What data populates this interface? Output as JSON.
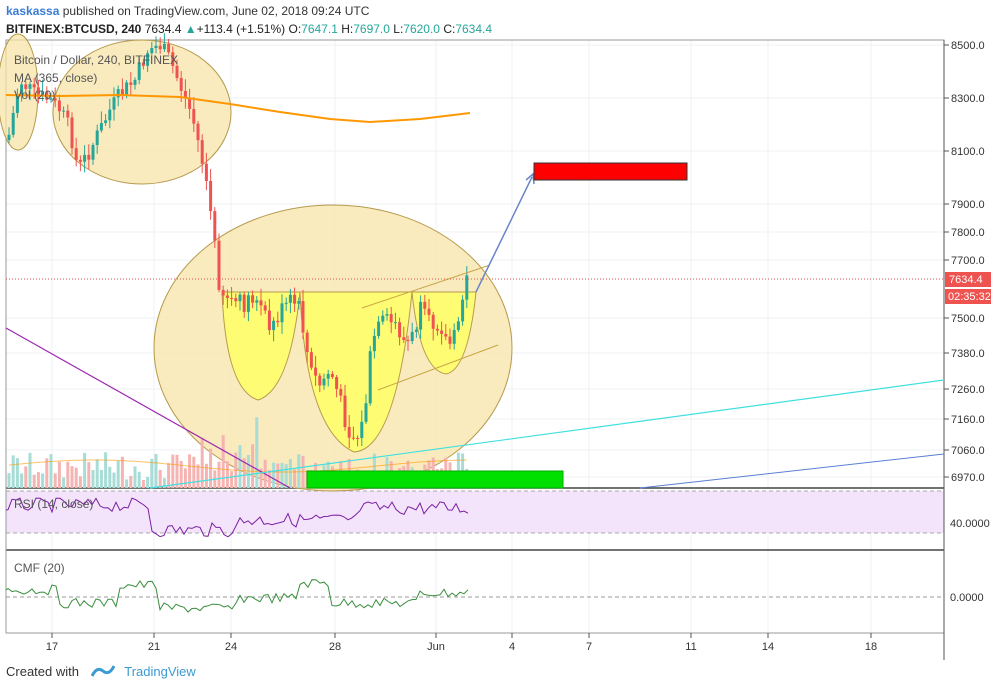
{
  "header": {
    "user": "kaskassa",
    "published": "published on TradingView.com, June 02, 2018 09:24 UTC",
    "symbol": "BITFINEX:BTCUSD, 240",
    "last": "7634.4",
    "change": "+113.4 (+1.51%)",
    "open_label": "O:",
    "open": "7647.1",
    "high_label": "H:",
    "high": "7697.0",
    "low_label": "L:",
    "low": "7620.0",
    "close_label": "C:",
    "close": "7634.4"
  },
  "legend": {
    "series": "Bitcoin / Dollar, 240, BITFINEX",
    "ma": "MA (365, close)",
    "vol": "Vol (20)",
    "rsi": "RSI (14, close)",
    "cmf": "CMF (20)"
  },
  "price_badge": {
    "price": "7634.4",
    "countdown": "02:35:32"
  },
  "footer": {
    "created": "Created with",
    "brand": "TradingView"
  },
  "colors": {
    "up": "#26a69a",
    "down": "#ef5350",
    "ma": "#ff9800",
    "rsi": "#7b1fa2",
    "cmf": "#388e3c",
    "target": "#ff0000",
    "support": "#00e000",
    "highlight_yellow": "#ffff66",
    "circle": "#f5d88a"
  },
  "chart_data": {
    "type": "candlestick",
    "main": {
      "y_ticks": [
        "8500.0",
        "8300.0",
        "8100.0",
        "7900.0",
        "7800.0",
        "7700.0",
        "7500.0",
        "7380.0",
        "7260.0",
        "7160.0",
        "7060.0",
        "6970.0"
      ],
      "last_price": 7634.4
    },
    "rsi": {
      "y_ticks": [
        "40.0000"
      ]
    },
    "cmf": {
      "y_ticks": [
        "0.0000"
      ]
    },
    "x_ticks": [
      "17",
      "21",
      "24",
      "28",
      "Jun",
      "4",
      "7",
      "11",
      "14",
      "18"
    ]
  }
}
